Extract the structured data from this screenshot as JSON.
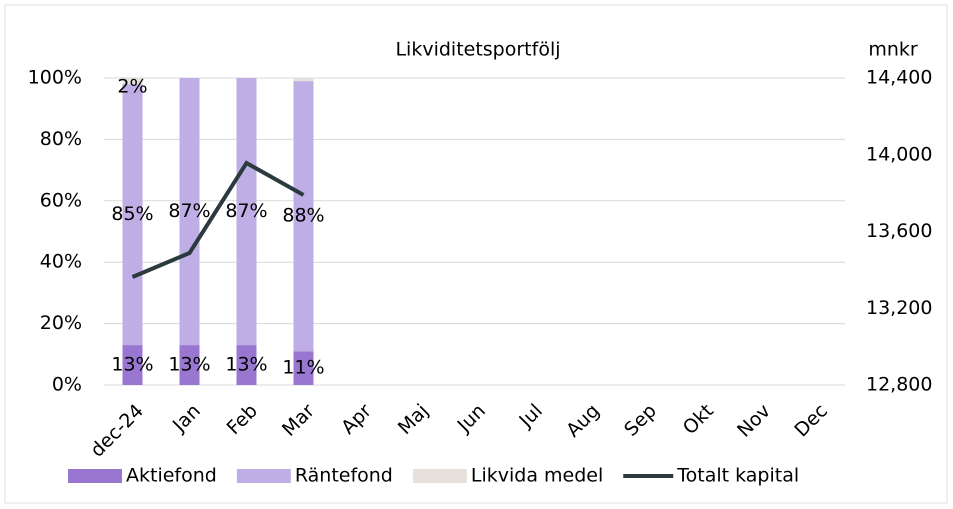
{
  "chart_data": {
    "type": "bar",
    "stacked": true,
    "title": "Likviditetsportfölj",
    "categories": [
      "dec-24",
      "Jan",
      "Feb",
      "Mar",
      "Apr",
      "Maj",
      "Jun",
      "Jul",
      "Aug",
      "Sep",
      "Okt",
      "Nov",
      "Dec"
    ],
    "series": [
      {
        "name": "Aktiefond",
        "type": "bar",
        "color": "#9977d0",
        "values": [
          13,
          13,
          13,
          11,
          null,
          null,
          null,
          null,
          null,
          null,
          null,
          null,
          null
        ],
        "value_labels": [
          "13%",
          "13%",
          "13%",
          "11%",
          null,
          null,
          null,
          null,
          null,
          null,
          null,
          null,
          null
        ]
      },
      {
        "name": "Räntefond",
        "type": "bar",
        "color": "#bfaee5",
        "values": [
          85,
          87,
          87,
          88,
          null,
          null,
          null,
          null,
          null,
          null,
          null,
          null,
          null
        ],
        "value_labels": [
          "85%",
          "87%",
          "87%",
          "88%",
          null,
          null,
          null,
          null,
          null,
          null,
          null,
          null,
          null
        ]
      },
      {
        "name": "Likvida medel",
        "type": "bar",
        "color": "#e7e1dc",
        "values": [
          2,
          0,
          0,
          1,
          null,
          null,
          null,
          null,
          null,
          null,
          null,
          null,
          null
        ],
        "value_labels": [
          "2%",
          null,
          null,
          null,
          null,
          null,
          null,
          null,
          null,
          null,
          null,
          null,
          null
        ]
      },
      {
        "name": "Totalt kapital",
        "type": "line",
        "axis": "y2",
        "color": "#2b3a3f",
        "values": [
          13363,
          13488,
          13957,
          13790,
          null,
          null,
          null,
          null,
          null,
          null,
          null,
          null,
          null
        ]
      }
    ],
    "ylim": [
      0,
      100
    ],
    "yticks": [
      {
        "value": 0,
        "label": "0%"
      },
      {
        "value": 20,
        "label": "20%"
      },
      {
        "value": 40,
        "label": "40%"
      },
      {
        "value": 60,
        "label": "60%"
      },
      {
        "value": 80,
        "label": "80%"
      },
      {
        "value": 100,
        "label": "100%"
      }
    ],
    "y2_label": "mnkr",
    "y2lim": [
      12800,
      14400
    ],
    "y2ticks": [
      {
        "value": 12800,
        "label": "12,800"
      },
      {
        "value": 13200,
        "label": "13,200"
      },
      {
        "value": 13600,
        "label": "13,600"
      },
      {
        "value": 14000,
        "label": "14,000"
      },
      {
        "value": 14400,
        "label": "14,400"
      }
    ],
    "grid": true,
    "legend": "bottom"
  }
}
